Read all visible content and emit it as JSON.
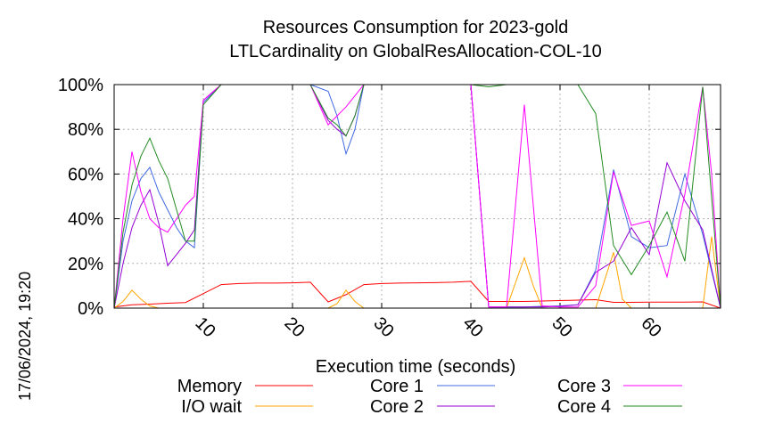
{
  "chart_data": {
    "type": "line",
    "title": "Resources Consumption for 2023-gold",
    "subtitle": "LTLCardinality on GlobalResAllocation-COL-10",
    "xlabel": "Execution time (seconds)",
    "ylabel": "",
    "xlim": [
      0,
      68
    ],
    "ylim": [
      0,
      100
    ],
    "x_ticks": [
      10,
      20,
      30,
      40,
      50,
      60
    ],
    "y_ticks": [
      0,
      20,
      40,
      60,
      80,
      100
    ],
    "y_tick_labels": [
      "0%",
      "20%",
      "40%",
      "60%",
      "80%",
      "100%"
    ],
    "grid": true,
    "timestamp": "17/06/2024, 19:20",
    "series": [
      {
        "name": "Memory",
        "color": "#ff0000",
        "x": [
          0,
          2,
          4,
          6,
          8,
          10,
          12,
          14,
          16,
          18,
          20,
          22,
          24,
          26,
          28,
          30,
          32,
          34,
          36,
          38,
          40,
          42,
          44,
          46,
          48,
          50,
          52,
          54,
          56,
          58,
          60,
          62,
          64,
          66,
          68
        ],
        "y": [
          0.5,
          1.5,
          1.8,
          2.2,
          2.5,
          6.5,
          10.5,
          11,
          11.2,
          11.2,
          11.3,
          11.6,
          2.8,
          6,
          10.5,
          11,
          11.2,
          11.3,
          11.4,
          11.6,
          12,
          3,
          3,
          3,
          3.2,
          3.4,
          3.6,
          3.8,
          2.6,
          2.6,
          2.7,
          2.7,
          2.7,
          2.8,
          0
        ]
      },
      {
        "name": "I/O wait",
        "color": "#ffa500",
        "x": [
          0,
          1,
          2,
          3,
          4,
          5,
          6,
          7,
          8,
          9,
          10,
          12,
          14,
          16,
          18,
          20,
          22,
          24,
          25,
          26,
          27,
          28,
          30,
          32,
          34,
          36,
          38,
          40,
          42,
          44,
          46,
          47,
          48,
          50,
          52,
          54,
          56,
          57,
          58,
          60,
          62,
          64,
          66,
          67,
          68
        ],
        "y": [
          0,
          3,
          8,
          4,
          1,
          0,
          0,
          0,
          0,
          0,
          0,
          0,
          0,
          0,
          0,
          0,
          0,
          0,
          2,
          8,
          3,
          0,
          0,
          0,
          0,
          0,
          0,
          0,
          0,
          0,
          22.5,
          10,
          0,
          0,
          0,
          0,
          25,
          4,
          0,
          0,
          0,
          0,
          0,
          32,
          0
        ]
      },
      {
        "name": "Core 1",
        "color": "#4169e1",
        "x": [
          0,
          1,
          2,
          3,
          4,
          5,
          6,
          7,
          8,
          9,
          10,
          12,
          14,
          16,
          18,
          20,
          22,
          24,
          25,
          26,
          27,
          28,
          30,
          32,
          34,
          36,
          38,
          40,
          42,
          44,
          46,
          48,
          50,
          52,
          54,
          56,
          58,
          60,
          62,
          64,
          66,
          68
        ],
        "y": [
          0,
          30,
          48,
          58,
          63,
          52,
          44,
          36,
          30,
          27,
          92,
          100,
          100,
          100,
          100,
          100,
          100,
          97,
          86,
          69,
          80,
          100,
          100,
          100,
          100,
          100,
          100,
          100,
          0.5,
          0.5,
          0.5,
          0.8,
          1,
          1.5,
          17,
          62,
          32,
          27,
          28,
          60,
          33,
          0
        ]
      },
      {
        "name": "Core 2",
        "color": "#9400d3",
        "x": [
          0,
          1,
          2,
          3,
          4,
          5,
          6,
          7,
          8,
          9,
          10,
          12,
          14,
          16,
          18,
          20,
          22,
          24,
          25,
          26,
          27,
          28,
          30,
          32,
          34,
          36,
          38,
          40,
          42,
          44,
          46,
          48,
          50,
          52,
          54,
          56,
          58,
          60,
          62,
          64,
          66,
          68
        ],
        "y": [
          0,
          20,
          36,
          46,
          53,
          38,
          19,
          24,
          29,
          35,
          93,
          100,
          100,
          100,
          100,
          100,
          100,
          84,
          80,
          77,
          86,
          100,
          100,
          100,
          100,
          100,
          100,
          100,
          0.5,
          0.5,
          0.5,
          0.5,
          0.8,
          1.5,
          16,
          21,
          36,
          24,
          65,
          48,
          35,
          0
        ]
      },
      {
        "name": "Core 3",
        "color": "#ff00ff",
        "x": [
          0,
          1,
          2,
          3,
          4,
          5,
          6,
          7,
          8,
          9,
          10,
          12,
          14,
          16,
          18,
          20,
          22,
          24,
          25,
          26,
          27,
          28,
          30,
          32,
          34,
          36,
          38,
          40,
          42,
          44,
          46,
          48,
          50,
          52,
          54,
          56,
          58,
          60,
          62,
          64,
          66,
          67,
          68
        ],
        "y": [
          0,
          40,
          70,
          52,
          40,
          36,
          34,
          40,
          46,
          50,
          93,
          100,
          100,
          100,
          100,
          100,
          100,
          82,
          86,
          90,
          95,
          100,
          100,
          100,
          100,
          100,
          100,
          100,
          0.5,
          0.5,
          91,
          1,
          0.5,
          0.5,
          10,
          61,
          37,
          39,
          14,
          51,
          99,
          60,
          0
        ]
      },
      {
        "name": "Core 4",
        "color": "#228b22",
        "x": [
          0,
          1,
          2,
          3,
          4,
          5,
          6,
          7,
          8,
          9,
          10,
          12,
          14,
          16,
          18,
          20,
          22,
          24,
          25,
          26,
          27,
          28,
          30,
          32,
          34,
          36,
          38,
          40,
          42,
          44,
          46,
          48,
          50,
          52,
          54,
          56,
          58,
          60,
          62,
          64,
          66,
          68
        ],
        "y": [
          0,
          34,
          55,
          68,
          76,
          66,
          58,
          44,
          30,
          30,
          91,
          100,
          100,
          100,
          100,
          100,
          100,
          85,
          82,
          77,
          86,
          100,
          100,
          100,
          100,
          100,
          100,
          100,
          99,
          100,
          100,
          100,
          100,
          100,
          87,
          28,
          15,
          28,
          43,
          21,
          99,
          0
        ]
      }
    ],
    "legend": {
      "placement": "bottom",
      "order": [
        "Memory",
        "I/O wait",
        "Core 1",
        "Core 2",
        "Core 3",
        "Core 4"
      ]
    }
  }
}
